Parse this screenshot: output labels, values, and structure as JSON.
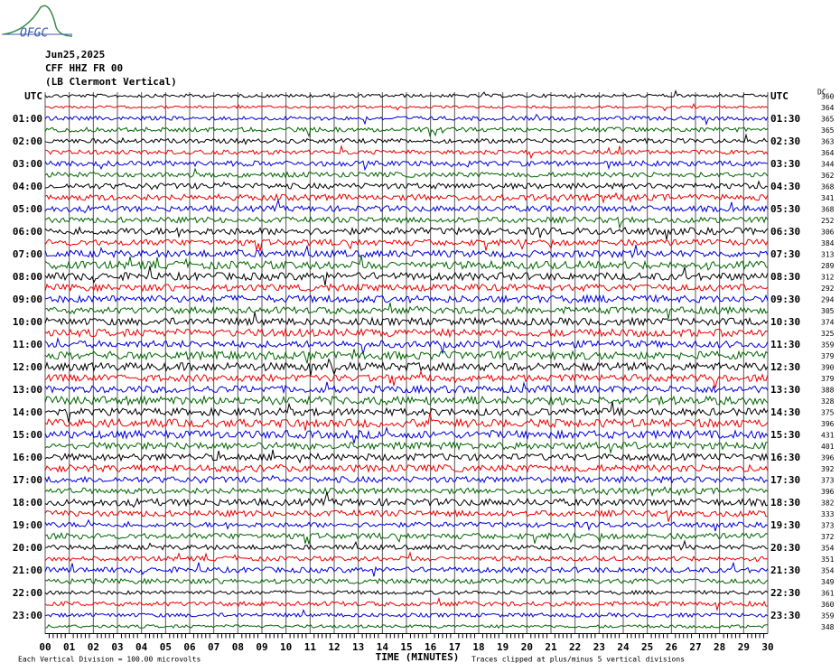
{
  "logo": "OFGC",
  "header": {
    "date": "Jun25,2025",
    "station": "CFF HHZ FR 00",
    "location": "(LB Clermont Vertical)"
  },
  "left_labels": [
    "UTC",
    "01:00",
    "02:00",
    "03:00",
    "04:00",
    "05:00",
    "06:00",
    "07:00",
    "08:00",
    "09:00",
    "10:00",
    "11:00",
    "12:00",
    "13:00",
    "14:00",
    "15:00",
    "16:00",
    "17:00",
    "18:00",
    "19:00",
    "20:00",
    "21:00",
    "22:00",
    "23:00"
  ],
  "right_labels": [
    "UTC",
    "01:30",
    "02:30",
    "03:30",
    "04:30",
    "05:30",
    "06:30",
    "07:30",
    "08:30",
    "09:30",
    "10:30",
    "11:30",
    "12:30",
    "13:30",
    "14:30",
    "15:30",
    "16:30",
    "17:30",
    "18:30",
    "19:30",
    "20:30",
    "21:30",
    "22:30",
    "23:30"
  ],
  "dc_header": "DC",
  "dc_values": [
    360,
    364,
    365,
    365,
    363,
    364,
    344,
    362,
    368,
    341,
    368,
    252,
    306,
    384,
    313,
    289,
    312,
    292,
    294,
    305,
    374,
    325,
    359,
    379,
    390,
    379,
    388,
    328,
    375,
    396,
    431,
    401,
    396,
    392,
    373,
    396,
    382,
    333,
    373,
    372,
    354,
    351,
    354,
    349,
    361,
    360,
    359,
    348
  ],
  "x_ticks": [
    "00",
    "01",
    "02",
    "03",
    "04",
    "05",
    "06",
    "07",
    "08",
    "09",
    "10",
    "11",
    "12",
    "13",
    "14",
    "15",
    "16",
    "17",
    "18",
    "19",
    "20",
    "21",
    "22",
    "23",
    "24",
    "25",
    "26",
    "27",
    "28",
    "29",
    "30"
  ],
  "x_label": "TIME (MINUTES)",
  "footer_left": "Each Vertical Division =  100.00 microvolts",
  "footer_right": "Traces clipped at plus/minus 5 vertical divisions"
}
